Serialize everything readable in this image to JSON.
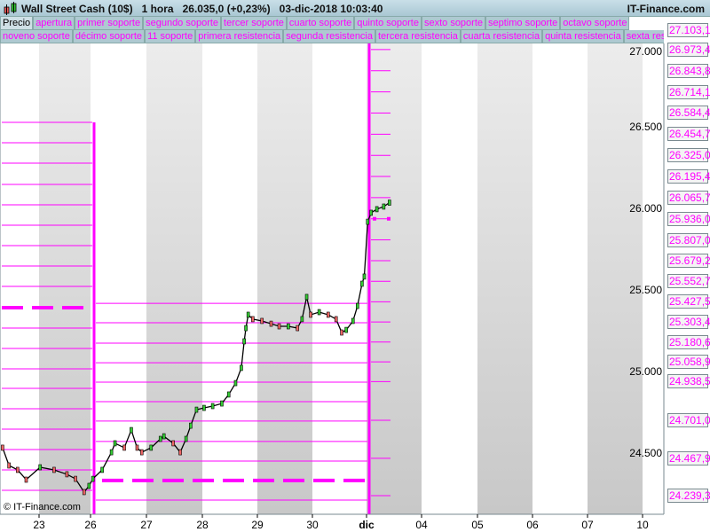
{
  "header": {
    "title": "Wall Street Cash (10$)   1 hora   26.035,0 (+0,23%)   03-dic-2018 10:03:40",
    "brand": "IT-Finance.com"
  },
  "legend": {
    "row1": [
      "Precio",
      "apertura",
      "primer soporte",
      "segundo soporte",
      "tercer soporte",
      "cuarto soporte",
      "quinto soporte",
      "sexto soporte",
      "septimo soporte",
      "octavo soporte"
    ],
    "row2": [
      "noveno soporte",
      "décimo soporte",
      "11 soporte",
      "primera resistencia",
      "segunda resistencia",
      "tercera resistencia",
      "cuarta resistencia",
      "quinta resistencia",
      "sexta resistencia"
    ]
  },
  "copyright": "© IT-Finance.com",
  "colors": {
    "levels": "#ff00ff",
    "price": "#000000",
    "up": "#33cc33",
    "down": "#ee6666",
    "band": "#d4d4d4"
  },
  "chart_data": {
    "type": "line",
    "series": [
      {
        "x": [
          "22 07:00",
          "22 10:00",
          "22 14:00",
          "22 18:00",
          "23 00:30",
          "23 07:00",
          "23 13:00",
          "23 17:00",
          "23 21:00",
          "23 23:20",
          "26 01:00",
          "26 05:00",
          "26 09:00",
          "26 10:30",
          "26 14:30",
          "26 17:30",
          "26 20:00",
          "26 22:00",
          "27 02:00",
          "27 06:00",
          "27 07:30",
          "27 11:30",
          "27 14:30",
          "27 17:00",
          "27 19:00",
          "27 21:30",
          "28 00:45",
          "28 04:30",
          "28 08:30",
          "28 11:30",
          "28 14:30",
          "28 17:00",
          "28 18:15",
          "28 19:00",
          "28 20:00",
          "28 22:00",
          "29 02:00",
          "29 06:00",
          "29 09:30",
          "29 13:30",
          "29 17:30",
          "29 19:30",
          "29 21:30",
          "29 23:15",
          "30 03:00",
          "30 07:00",
          "30 10:30",
          "30 13:00",
          "30 15:00",
          "30 18:00",
          "30 20:00",
          "30 22:00",
          "30 23:00",
          "03 00:30",
          "03 02:00",
          "03 04:30",
          "03 07:30",
          "03 10:00"
        ],
        "y": [
          24533,
          24424,
          24397,
          24337,
          24413,
          24397,
          24370,
          24342,
          24261,
          24299,
          24342,
          24397,
          24505,
          24560,
          24533,
          24641,
          24533,
          24505,
          24533,
          24587,
          24603,
          24560,
          24505,
          24587,
          24668,
          24766,
          24777,
          24788,
          24804,
          24859,
          24929,
          25022,
          25185,
          25266,
          25348,
          25321,
          25310,
          25293,
          25277,
          25277,
          25266,
          25321,
          25457,
          25348,
          25364,
          25348,
          25321,
          25239,
          25255,
          25310,
          25402,
          25538,
          25582,
          25918,
          25973,
          25995,
          26011,
          26035
        ]
      }
    ],
    "x_ticks": [
      "23",
      "26",
      "27",
      "28",
      "29",
      "30",
      "dic",
      "04",
      "05",
      "06",
      "07",
      "10"
    ],
    "y_ticks": [
      "27.000",
      "26.500",
      "26.000",
      "25.500",
      "25.000",
      "24.500"
    ],
    "y_tick_values": [
      27000,
      26500,
      26000,
      25500,
      25000,
      24500
    ],
    "ylim": [
      24130,
      27200
    ],
    "level_labels": [
      "27.103,1",
      "26.973,4",
      "26.843,8",
      "26.714,1",
      "26.584,4",
      "26.454,7",
      "26.325,0",
      "26.195,4",
      "26.065,7",
      "25.936,0",
      "25.807,0",
      "25.679,2",
      "25.552,7",
      "25.427,5",
      "25.303,4",
      "25.180,6",
      "25.058,9",
      "24.938,5",
      "24.701,0",
      "24.467,9",
      "24.239,3"
    ],
    "level_values": [
      27103.1,
      26973.4,
      26843.8,
      26714.1,
      26584.4,
      26454.7,
      26325.0,
      26195.4,
      26065.7,
      25936.0,
      25807.0,
      25679.2,
      25552.7,
      25427.5,
      25303.4,
      25180.6,
      25058.9,
      24938.5,
      24701.0,
      24467.9,
      24239.3
    ],
    "periods": [
      {
        "from": "22 00:00",
        "to": "26 00:00",
        "levels": [
          26527,
          26402,
          26277,
          26147,
          26022,
          25897,
          25772,
          25647,
          25522,
          25266,
          25141,
          25016,
          24897,
          24772,
          24647,
          24522,
          24397,
          24272
        ],
        "apertura": 25391
      },
      {
        "from": "26 00:00",
        "to": "03 00:00",
        "levels": [
          25418,
          25299,
          25174,
          25054,
          24935,
          24815,
          24696,
          24571,
          24451,
          24212
        ],
        "apertura": 24332
      },
      {
        "from": "03 00:00",
        "to": "03 10:00",
        "apertura": 25936
      }
    ]
  }
}
